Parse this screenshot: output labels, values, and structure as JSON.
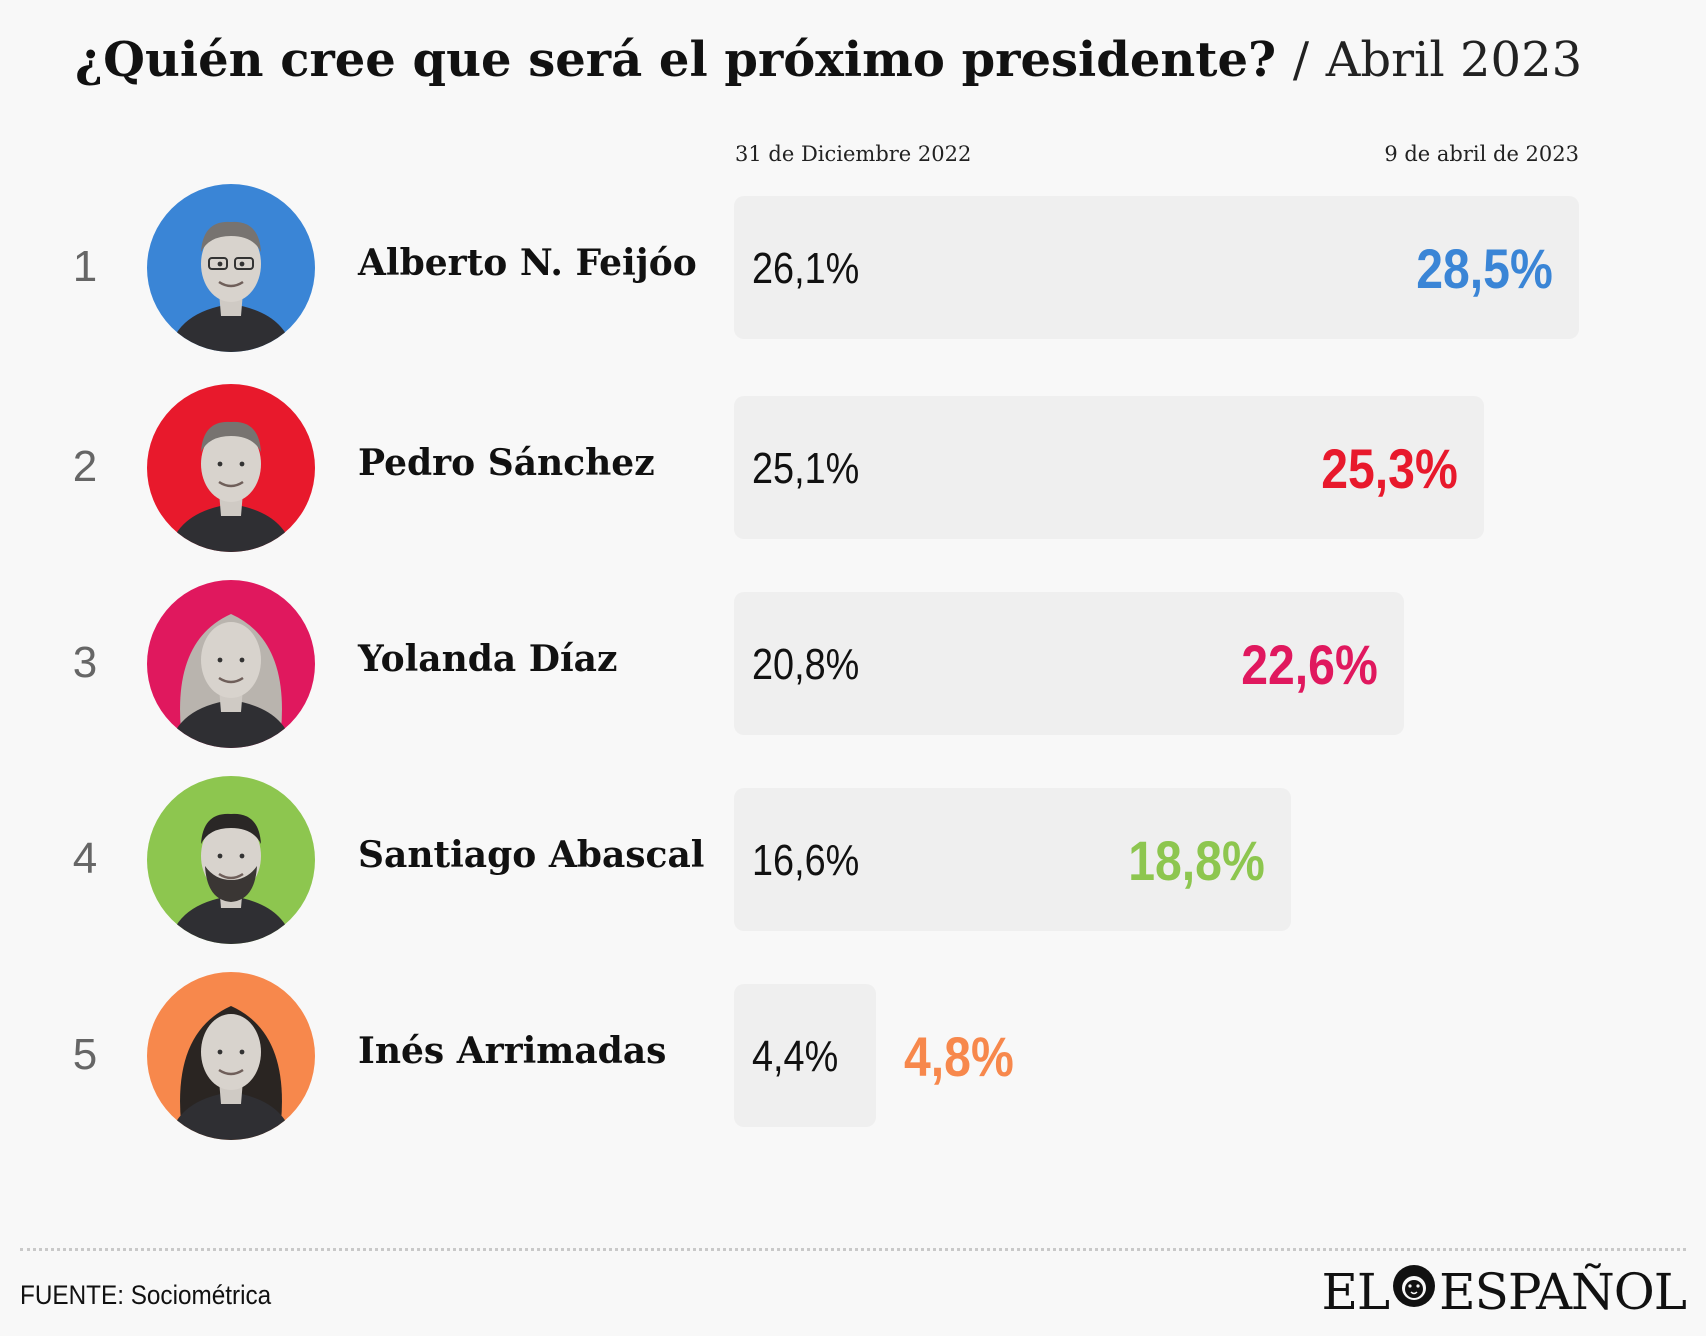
{
  "title": {
    "main": "¿Quién cree que será el próximo presidente?",
    "separator": "/",
    "sub": "Abril 2023"
  },
  "chart_data": {
    "type": "bar",
    "title": "¿Quién cree que será el próximo presidente? / Abril 2023",
    "column_labels": [
      "31 de Diciembre 2022",
      "9 de abril de 2023"
    ],
    "xlim": [
      0,
      28.5
    ],
    "categories": [
      "Alberto N. Feijóo",
      "Pedro Sánchez",
      "Yolanda Díaz",
      "Santiago Abascal",
      "Inés Arrimadas"
    ],
    "series": [
      {
        "name": "31 de Diciembre 2022",
        "values": [
          26.1,
          25.1,
          20.8,
          16.6,
          4.4
        ]
      },
      {
        "name": "9 de abril de 2023",
        "values": [
          28.5,
          25.3,
          22.6,
          18.8,
          4.8
        ]
      }
    ],
    "rows": [
      {
        "rank": "1",
        "name": "Alberto N. Feijóo",
        "old": "26,1%",
        "new": "28,5%",
        "value_old": 26.1,
        "value_new": 28.5,
        "color": "#3a85d6",
        "avatar": "feijoo-photo"
      },
      {
        "rank": "2",
        "name": "Pedro Sánchez",
        "old": "25,1%",
        "new": "25,3%",
        "value_old": 25.1,
        "value_new": 25.3,
        "color": "#e8192c",
        "avatar": "sanchez-photo"
      },
      {
        "rank": "3",
        "name": "Yolanda Díaz",
        "old": "20,8%",
        "new": "22,6%",
        "value_old": 20.8,
        "value_new": 22.6,
        "color": "#e0185e",
        "avatar": "diaz-photo"
      },
      {
        "rank": "4",
        "name": "Santiago Abascal",
        "old": "16,6%",
        "new": "18,8%",
        "value_old": 16.6,
        "value_new": 18.8,
        "color": "#8dc64f",
        "avatar": "abascal-photo"
      },
      {
        "rank": "5",
        "name": "Inés Arrimadas",
        "old": "4,4%",
        "new": "4,8%",
        "value_old": 4.4,
        "value_new": 4.8,
        "color": "#f7884c",
        "avatar": "arrimadas-photo"
      }
    ]
  },
  "footer": {
    "source": "FUENTE: Sociométrica",
    "logo_left": "EL",
    "logo_right": "ESPAÑOL",
    "logo_icon": "lion-head-icon"
  }
}
